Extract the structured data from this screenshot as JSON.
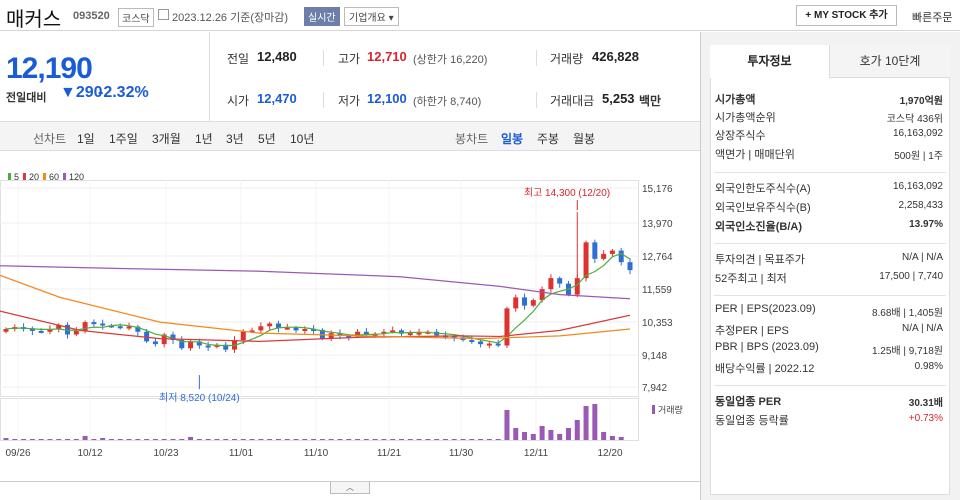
{
  "header": {
    "name": "매커스",
    "code": "093520",
    "market": "코스닥",
    "date": "2023.12.26 기준(장마감)",
    "realtime": "실시간",
    "overview": "기업개요",
    "mystock": "MY STOCK 추가",
    "quick_order": "빠른주문"
  },
  "price": {
    "current": "12,190",
    "compare_label": "전일대비",
    "change": "290",
    "change_pct": "-2.32%"
  },
  "stats": {
    "prev_label": "전일",
    "prev": "12,480",
    "high_label": "고가",
    "high": "12,710",
    "upper_limit": "(상한가 16,220)",
    "volume_label": "거래량",
    "volume": "426,828",
    "open_label": "시가",
    "open": "12,470",
    "low_label": "저가",
    "low": "12,100",
    "lower_limit": "(하한가 8,740)",
    "amount_label": "거래대금",
    "amount": "5,253",
    "amount_unit": "백만"
  },
  "periods": {
    "line_label": "선차트",
    "items": [
      "1일",
      "1주일",
      "3개월",
      "1년",
      "3년",
      "5년",
      "10년"
    ],
    "candle_label": "봉차트",
    "candle_items": [
      "일봉",
      "주봉",
      "월봉"
    ],
    "selected": "일봉"
  },
  "chart_data": {
    "type": "candlestick",
    "ma_legend": [
      {
        "name": "5",
        "color": "#4cae3a"
      },
      {
        "name": "20",
        "color": "#d93a3a"
      },
      {
        "name": "60",
        "color": "#f08a1c"
      },
      {
        "name": "120",
        "color": "#9b59b6"
      }
    ],
    "y_ticks": [
      "15,176",
      "13,970",
      "12,764",
      "11,559",
      "10,353",
      "9,148",
      "7,942"
    ],
    "x_ticks": [
      "09/26",
      "10/12",
      "10/23",
      "11/01",
      "11/10",
      "11/21",
      "11/30",
      "12/11",
      "12/20"
    ],
    "max_label": "최고 14,300 (12/20)",
    "min_label": "최저 8,520 (10/24)",
    "volume_label": "거래량",
    "bottom_tab": "︿"
  },
  "info": {
    "tab_active": "투자정보",
    "tab_other": "호가 10단계",
    "rows": [
      {
        "label": "시가총액",
        "value": "1,970억원",
        "bold": true
      },
      {
        "label": "시가총액순위",
        "value": "코스닥 436위"
      },
      {
        "label": "상장주식수",
        "value": "16,163,092"
      },
      {
        "label": "액면가 | 매매단위",
        "value": "500원 | 1주"
      },
      {
        "label": "외국인한도주식수(A)",
        "value": "16,163,092"
      },
      {
        "label": "외국인보유주식수(B)",
        "value": "2,258,433"
      },
      {
        "label": "외국인소진율(B/A)",
        "value": "13.97%",
        "bold": true
      },
      {
        "label": "투자의견 | 목표주가",
        "value": "N/A | N/A"
      },
      {
        "label": "52주최고 | 최저",
        "value": "17,500 | 7,740"
      },
      {
        "label": "PER | EPS(2023.09)",
        "value": "8.68배 | 1,405원"
      },
      {
        "label": "추정PER | EPS",
        "value": "N/A | N/A"
      },
      {
        "label": "PBR | BPS (2023.09)",
        "value": "1.25배 | 9,718원"
      },
      {
        "label": "배당수익률 | 2022.12",
        "value": "0.98%"
      },
      {
        "label": "동일업종 PER",
        "value": "30.31배",
        "bold": true
      },
      {
        "label": "동일업종 등락률",
        "value": "+0.73%",
        "red": true
      }
    ]
  }
}
